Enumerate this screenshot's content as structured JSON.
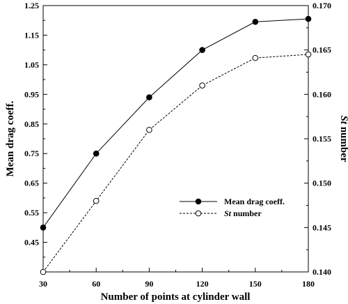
{
  "chart_data": {
    "type": "line",
    "x": [
      30,
      60,
      90,
      120,
      150,
      180
    ],
    "xlabel": "Number of points at cylinder wall",
    "xlim": [
      30,
      180
    ],
    "xticks": [
      "30",
      "60",
      "90",
      "120",
      "150",
      "180"
    ],
    "ylabel_left": "Mean drag coeff.",
    "ylim_left": [
      0.35,
      1.25
    ],
    "yticks_left": [
      "0.45",
      "0.55",
      "0.65",
      "0.75",
      "0.85",
      "0.95",
      "1.05",
      "1.15",
      "1.25"
    ],
    "ylabel_right": "St number",
    "ylim_right": [
      0.14,
      0.17
    ],
    "yticks_right": [
      "0.140",
      "0.145",
      "0.150",
      "0.155",
      "0.160",
      "0.165",
      "0.170"
    ],
    "series": [
      {
        "name": "Mean drag coeff.",
        "axis": "left",
        "values": [
          0.5,
          0.75,
          0.94,
          1.1,
          1.195,
          1.205
        ],
        "marker": "filled-circle",
        "line": "solid",
        "color": "#000000"
      },
      {
        "name": "St number",
        "axis": "right",
        "values": [
          0.14,
          0.148,
          0.156,
          0.161,
          0.1641,
          0.1645
        ],
        "marker": "open-circle",
        "line": "dashed",
        "color": "#000000"
      }
    ],
    "legend": {
      "placement": "center-right",
      "entries": [
        {
          "label": "Mean drag coeff.",
          "italic_prefix": ""
        },
        {
          "label": " number",
          "italic_prefix": "St"
        }
      ]
    },
    "grid": false
  }
}
